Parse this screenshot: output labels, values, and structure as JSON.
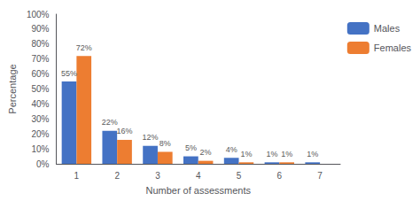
{
  "chart_data": {
    "type": "bar",
    "xlabel": "Number of assessments",
    "ylabel": "Percentage",
    "categories": [
      "1",
      "2",
      "3",
      "4",
      "5",
      "6",
      "7"
    ],
    "series": [
      {
        "name": "Males",
        "color": "#4472C4",
        "values": [
          55,
          22,
          12,
          5,
          4,
          1,
          1
        ],
        "value_labels": [
          "55%",
          "22%",
          "12%",
          "5%",
          "4%",
          "1%",
          "1%"
        ]
      },
      {
        "name": "Females",
        "color": "#ED7D31",
        "values": [
          72,
          16,
          8,
          2,
          1,
          1,
          0
        ],
        "value_labels": [
          "72%",
          "16%",
          "8%",
          "2%",
          "1%",
          "1%",
          null
        ]
      }
    ],
    "ylim": [
      0,
      100
    ],
    "yticks": [
      {
        "value": 0,
        "label": "0%"
      },
      {
        "value": 10,
        "label": "10%"
      },
      {
        "value": 20,
        "label": "20%"
      },
      {
        "value": 30,
        "label": "30%"
      },
      {
        "value": 40,
        "label": "40%"
      },
      {
        "value": 50,
        "label": "50%"
      },
      {
        "value": 60,
        "label": "60%"
      },
      {
        "value": 70,
        "label": "70%"
      },
      {
        "value": 80,
        "label": "80%"
      },
      {
        "value": 90,
        "label": "90%"
      },
      {
        "value": 100,
        "label": "100%"
      }
    ],
    "grid": false,
    "legend": "right",
    "data_labels": true
  }
}
